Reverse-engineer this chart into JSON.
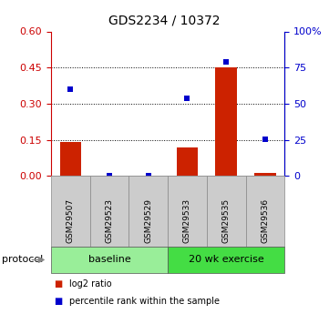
{
  "title": "GDS2234 / 10372",
  "samples": [
    "GSM29507",
    "GSM29523",
    "GSM29529",
    "GSM29533",
    "GSM29535",
    "GSM29536"
  ],
  "log2_ratio": [
    0.142,
    0.0,
    0.0,
    0.118,
    0.452,
    0.012
  ],
  "percentile_rank": [
    60.0,
    0.0,
    0.0,
    54.0,
    79.0,
    25.5
  ],
  "left_yticks": [
    0,
    0.15,
    0.3,
    0.45,
    0.6
  ],
  "left_ylim": [
    0,
    0.6
  ],
  "right_yticks": [
    0,
    25,
    50,
    75,
    100
  ],
  "right_ylim": [
    0,
    100
  ],
  "left_ycolor": "#cc0000",
  "right_ycolor": "#0000cc",
  "bar_color": "#cc2200",
  "dot_color": "#0000cc",
  "groups": [
    {
      "label": "baseline",
      "samples": [
        0,
        1,
        2
      ],
      "color": "#99ee99"
    },
    {
      "label": "20 wk exercise",
      "samples": [
        3,
        4,
        5
      ],
      "color": "#44dd44"
    }
  ],
  "protocol_label": "protocol",
  "legend_items": [
    {
      "color": "#cc2200",
      "label": "log2 ratio"
    },
    {
      "color": "#0000cc",
      "label": "percentile rank within the sample"
    }
  ],
  "grid_yticks": [
    0.15,
    0.3,
    0.45
  ],
  "background_color": "#ffffff",
  "sample_label_area_color": "#cccccc"
}
